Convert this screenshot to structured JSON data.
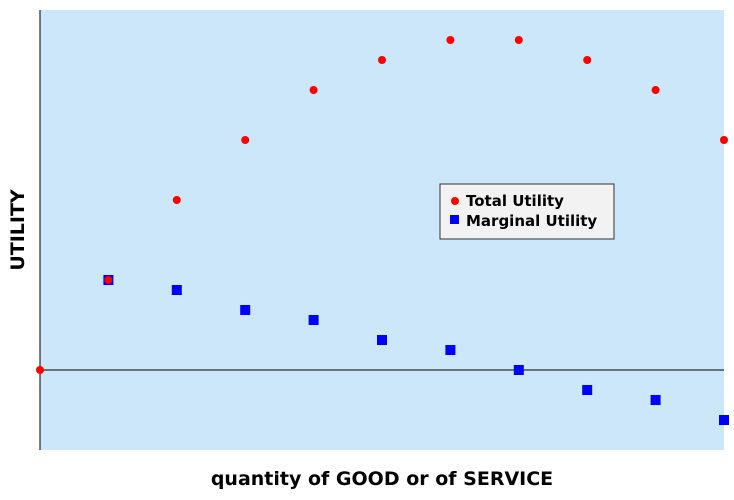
{
  "chart_data": {
    "type": "scatter",
    "xlabel": "quantity of GOOD or of SERVICE",
    "ylabel": "UTILITY",
    "xlim": [
      0,
      10
    ],
    "ylim": [
      -4,
      18
    ],
    "background_color": "#cce6fa",
    "grid": false,
    "legend_position": "center-right",
    "series": [
      {
        "name": "Total Utility",
        "color": "#ff0000",
        "marker": "circle",
        "x": [
          0,
          1,
          2,
          3,
          4,
          5,
          6,
          7,
          8,
          9,
          10
        ],
        "y": [
          0,
          4.5,
          8.5,
          11.5,
          14,
          15.5,
          16.5,
          16.5,
          15.5,
          14,
          11.5
        ]
      },
      {
        "name": "Marginal Utility",
        "color": "#0000ff",
        "marker": "square",
        "x": [
          1,
          2,
          3,
          4,
          5,
          6,
          7,
          8,
          9,
          10
        ],
        "y": [
          4.5,
          4,
          3,
          2.5,
          1.5,
          1,
          0,
          -1,
          -1.5,
          -2.5
        ]
      }
    ]
  }
}
